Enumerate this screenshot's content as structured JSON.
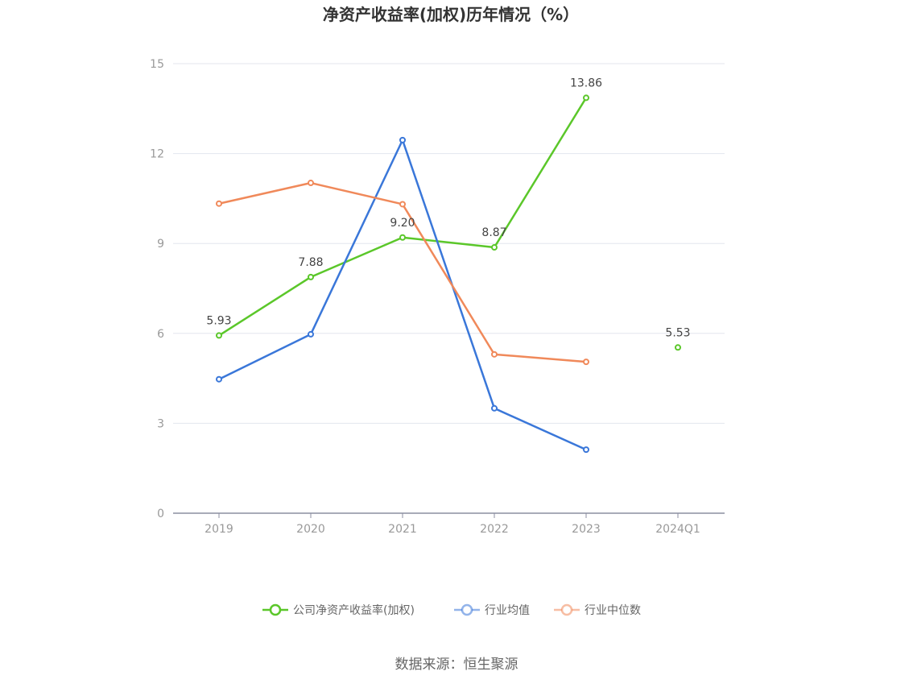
{
  "chart_data": {
    "type": "line",
    "title": "净资产收益率(加权)历年情况（%）",
    "categories": [
      "2019",
      "2020",
      "2021",
      "2022",
      "2023",
      "2024Q1"
    ],
    "ylim": [
      0,
      15
    ],
    "yticks": [
      0,
      3,
      6,
      9,
      12,
      15
    ],
    "grid": true,
    "legend_position": "bottom",
    "series": [
      {
        "name": "公司净资产收益率(加权)",
        "color": "#5bc72a",
        "values": [
          5.93,
          7.88,
          9.2,
          8.87,
          13.86,
          5.53
        ],
        "labels": [
          "5.93",
          "7.88",
          "9.20",
          "8.87",
          "13.86",
          "5.53"
        ],
        "gaps": [
          false,
          false,
          false,
          false,
          true
        ]
      },
      {
        "name": "行业均值",
        "color": "#3a77d9",
        "values": [
          4.47,
          5.97,
          12.45,
          3.5,
          2.12,
          null
        ]
      },
      {
        "name": "行业中位数",
        "color": "#f0895a",
        "values": [
          10.33,
          11.02,
          10.31,
          5.3,
          5.05,
          null
        ]
      }
    ],
    "source": "数据来源：恒生聚源"
  }
}
